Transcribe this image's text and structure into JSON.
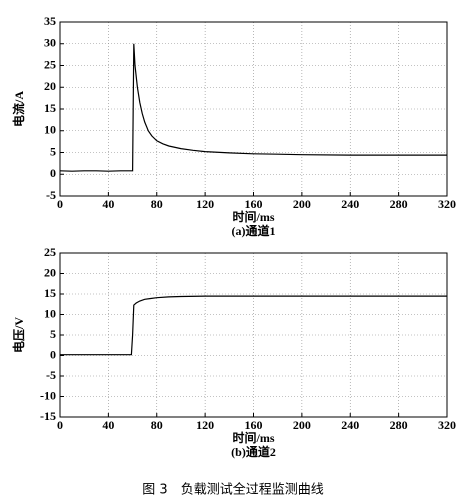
{
  "chart_data": [
    {
      "type": "line",
      "ylabel": "电流/A",
      "xlabel": "时间/ms",
      "subtitle": "(a)通道1",
      "color": "#000000",
      "grid": true,
      "x": [
        0,
        10,
        20,
        30,
        40,
        50,
        58,
        60,
        61,
        62,
        64,
        66,
        68,
        70,
        73,
        76,
        80,
        85,
        90,
        100,
        110,
        120,
        140,
        160,
        180,
        200,
        240,
        280,
        320
      ],
      "values": [
        0.8,
        0.7,
        0.8,
        0.8,
        0.7,
        0.8,
        0.8,
        0.8,
        30,
        25,
        20,
        16.5,
        14,
        12,
        10,
        8.8,
        7.7,
        7,
        6.5,
        5.9,
        5.5,
        5.2,
        4.9,
        4.7,
        4.6,
        4.5,
        4.4,
        4.4,
        4.4
      ],
      "xlim": [
        0,
        320
      ],
      "xticks": [
        0,
        40,
        80,
        120,
        160,
        200,
        240,
        280,
        320
      ],
      "ylim": [
        -5,
        35
      ],
      "yticks": [
        -5,
        0,
        5,
        10,
        15,
        20,
        25,
        30,
        35
      ]
    },
    {
      "type": "line",
      "ylabel": "电压/V",
      "xlabel": "时间/ms",
      "subtitle": "(b)通道2",
      "color": "#000000",
      "grid": true,
      "x": [
        0,
        20,
        40,
        59,
        60,
        61,
        63,
        66,
        70,
        75,
        80,
        90,
        100,
        120,
        160,
        200,
        240,
        280,
        320
      ],
      "values": [
        0.2,
        0.2,
        0.2,
        0.2,
        5,
        12.3,
        12.8,
        13.3,
        13.7,
        13.9,
        14.1,
        14.3,
        14.4,
        14.5,
        14.5,
        14.5,
        14.5,
        14.5,
        14.5
      ],
      "xlim": [
        0,
        320
      ],
      "xticks": [
        0,
        40,
        80,
        120,
        160,
        200,
        240,
        280,
        320
      ],
      "ylim": [
        -15,
        25
      ],
      "yticks": [
        -15,
        -10,
        -5,
        0,
        5,
        10,
        15,
        20,
        25
      ]
    }
  ],
  "caption": "图 3　负载测试全过程监测曲线"
}
